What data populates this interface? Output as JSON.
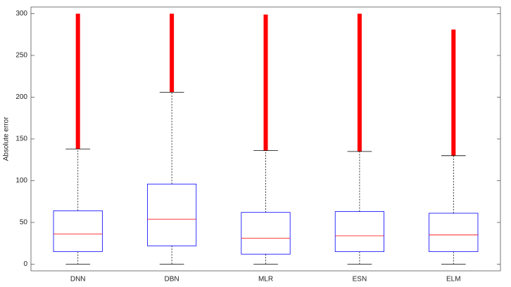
{
  "chart_data": {
    "type": "box",
    "ylabel": "Absolute error",
    "categories": [
      "DNN",
      "DBN",
      "MLR",
      "ESN",
      "ELM"
    ],
    "whisker_low": [
      0,
      0,
      0,
      0,
      0
    ],
    "q1": [
      15,
      22,
      12,
      15,
      15
    ],
    "median": [
      36,
      54,
      31,
      34,
      35
    ],
    "q3": [
      64,
      96,
      62,
      63,
      61
    ],
    "whisker_high": [
      138,
      206,
      136,
      135,
      130
    ],
    "outlier_min": [
      138,
      206,
      136,
      135,
      130
    ],
    "outlier_max": [
      300,
      300,
      299,
      300,
      281
    ],
    "box_color": "#0000ff",
    "median_color": "#ff0000",
    "outlier_color": "#ff0000",
    "whisker_color": "#000000",
    "ylim": [
      -8,
      308
    ],
    "yticks": [
      0,
      50,
      100,
      150,
      200,
      250,
      300
    ]
  }
}
